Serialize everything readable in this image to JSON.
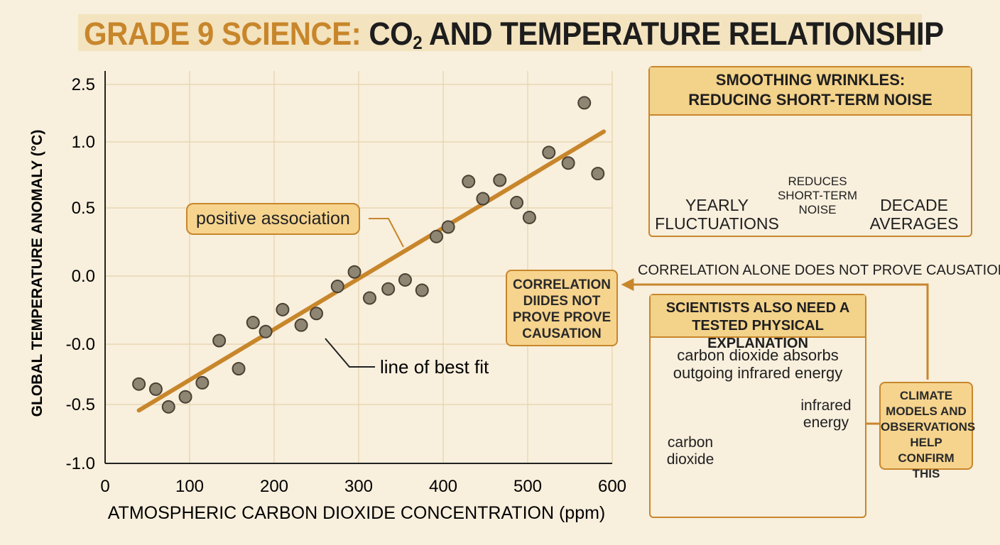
{
  "header": {
    "title_prefix": "GRADE 9 SCIENCE:",
    "title_co": "CO",
    "title_sub": "2",
    "title_rest": " AND TEMPERATURE RELATIONSHIP"
  },
  "colors": {
    "background": "#f8efdd",
    "accent": "#c8862b",
    "panel_fill": "#f6d48e",
    "point_fill": "#8f8573",
    "arrow_red": "#c9432a"
  },
  "chart_data": {
    "type": "scatter",
    "xlabel": "ATMOSPHERIC CARBON DIOXIDE CONCENTRATION (ppm)",
    "ylabel": "GLOBAL TEMPERATURE ANOMALY (°C)",
    "xlim": [
      0,
      600
    ],
    "x_ticks": [
      "0",
      "100",
      "200",
      "300",
      "400",
      "500",
      "600"
    ],
    "y_tick_labels": [
      "2.5",
      "1.0",
      "0.5",
      "0.0",
      "-0.0",
      "-0.5",
      "-1.0"
    ],
    "grid": true,
    "points": [
      {
        "x": 40,
        "y": -0.34
      },
      {
        "x": 60,
        "y": -0.38
      },
      {
        "x": 75,
        "y": -0.52
      },
      {
        "x": 95,
        "y": -0.44
      },
      {
        "x": 115,
        "y": -0.33
      },
      {
        "x": 135,
        "y": 0.0
      },
      {
        "x": 158,
        "y": -0.22
      },
      {
        "x": 175,
        "y": 0.14
      },
      {
        "x": 190,
        "y": 0.07
      },
      {
        "x": 210,
        "y": 0.24
      },
      {
        "x": 232,
        "y": 0.12
      },
      {
        "x": 250,
        "y": 0.21
      },
      {
        "x": 275,
        "y": 0.42
      },
      {
        "x": 295,
        "y": 0.53
      },
      {
        "x": 313,
        "y": 0.33
      },
      {
        "x": 335,
        "y": 0.4
      },
      {
        "x": 355,
        "y": 0.47
      },
      {
        "x": 375,
        "y": 0.39
      },
      {
        "x": 392,
        "y": 0.79
      },
      {
        "x": 406,
        "y": 0.86
      },
      {
        "x": 430,
        "y": 1.2
      },
      {
        "x": 447,
        "y": 1.07
      },
      {
        "x": 467,
        "y": 1.21
      },
      {
        "x": 487,
        "y": 1.04
      },
      {
        "x": 502,
        "y": 0.93
      },
      {
        "x": 525,
        "y": 1.42
      },
      {
        "x": 548,
        "y": 1.34
      },
      {
        "x": 567,
        "y": 1.84
      },
      {
        "x": 583,
        "y": 1.26
      }
    ],
    "fit_line": {
      "x": [
        40,
        590
      ],
      "y": [
        -0.55,
        1.59
      ]
    },
    "annotations": [
      "positive association",
      "line of best fit"
    ]
  },
  "smoothing": {
    "title_line1": "SMOOTHING WRINKLES:",
    "title_line2": "REDUCING SHORT-TERM NOISE",
    "yearly_line1": "YEARLY",
    "yearly_line2": "FLUCTUATIONS",
    "arrow_line1": "REDUCES",
    "arrow_line2": "SHORT-TERM",
    "arrow_line3": "NOISE",
    "decade_line1": "DECADE",
    "decade_line2": "AVERAGES"
  },
  "correlation": {
    "box_line1": "CORRELATION",
    "box_line2": "DIIDES NOT",
    "box_line3": "PROVE PROVE",
    "box_line4": "CAUSATION",
    "banner": "CORRELATION ALONE DOES NOT PROVE CAUSATION"
  },
  "explanation": {
    "title_line1": "SCIENTISTS ALSO NEED A",
    "title_line2": "TESTED PHYSICAL EXPLANATION",
    "body_line1": "carbon dioxide absorbs",
    "body_line2": "outgoing infrared energy",
    "molecule_label_line1": "carbon",
    "molecule_label_line2": "dioxide",
    "ir_label_line1": "infrared",
    "ir_label_line2": "energy"
  },
  "models": {
    "line1": "CLIMATE",
    "line2": "MODELS AND",
    "line3": "OBSERVATIONS",
    "line4": "HELP CONFIRM",
    "line5": "THIS"
  }
}
